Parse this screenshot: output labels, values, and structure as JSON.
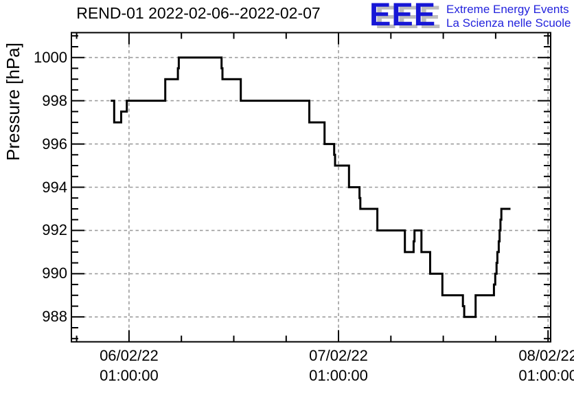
{
  "title": "REND-01 2022-02-06--2022-02-07",
  "logo": {
    "acronym": "EEE",
    "line1": "Extreme Energy Events",
    "line2": "La Scienza nelle Scuole",
    "text_color": "#2323dd",
    "acronym_color": "#1717d6",
    "shadow_color": "#bdbdbd"
  },
  "chart_data": {
    "type": "line",
    "style": "step-post",
    "title": "REND-01 2022-02-06--2022-02-07",
    "xlabel": "",
    "ylabel": "Pressure [hPa]",
    "x_unit": "hours since 06/02/22 01:00:00",
    "xlim": [
      -6.6,
      48.3
    ],
    "ylim": [
      986.85,
      1001.15
    ],
    "grid": true,
    "grid_color": "#9c9c9c",
    "frame_color": "#000000",
    "x_major_ticks": [
      {
        "t": 0,
        "lines": [
          "06/02/22",
          "01:00:00"
        ]
      },
      {
        "t": 24,
        "lines": [
          "07/02/22",
          "01:00:00"
        ]
      },
      {
        "t": 48,
        "lines": [
          "08/02/22",
          "01:00:00"
        ]
      }
    ],
    "x_minor_step_hours": 6,
    "y_major_ticks": [
      988,
      990,
      992,
      994,
      996,
      998,
      1000
    ],
    "y_minor_step": 0.5,
    "series": [
      {
        "name": "pressure",
        "color": "#000000",
        "steps": [
          [
            -2.1,
            998
          ],
          [
            -1.7,
            997
          ],
          [
            -0.9,
            997.5
          ],
          [
            -0.25,
            998
          ],
          [
            4.15,
            999
          ],
          [
            5.6,
            999.5
          ],
          [
            5.7,
            1000
          ],
          [
            10.6,
            999.5
          ],
          [
            10.7,
            999
          ],
          [
            12.8,
            998
          ],
          [
            20.65,
            997
          ],
          [
            22.4,
            996
          ],
          [
            23.5,
            995.5
          ],
          [
            23.6,
            995
          ],
          [
            25.2,
            994
          ],
          [
            26.4,
            993.5
          ],
          [
            26.5,
            993
          ],
          [
            28.45,
            992
          ],
          [
            31.6,
            991
          ],
          [
            32.6,
            991.5
          ],
          [
            32.7,
            992
          ],
          [
            33.5,
            991
          ],
          [
            34.5,
            990
          ],
          [
            35.9,
            989
          ],
          [
            38.25,
            988.5
          ],
          [
            38.4,
            988
          ],
          [
            39.7,
            989
          ],
          [
            41.8,
            989.5
          ],
          [
            41.95,
            990
          ],
          [
            42.1,
            990.5
          ],
          [
            42.2,
            991
          ],
          [
            42.35,
            991.5
          ],
          [
            42.45,
            992
          ],
          [
            42.55,
            992.5
          ],
          [
            42.65,
            993
          ],
          [
            43.7,
            993
          ]
        ]
      }
    ]
  }
}
